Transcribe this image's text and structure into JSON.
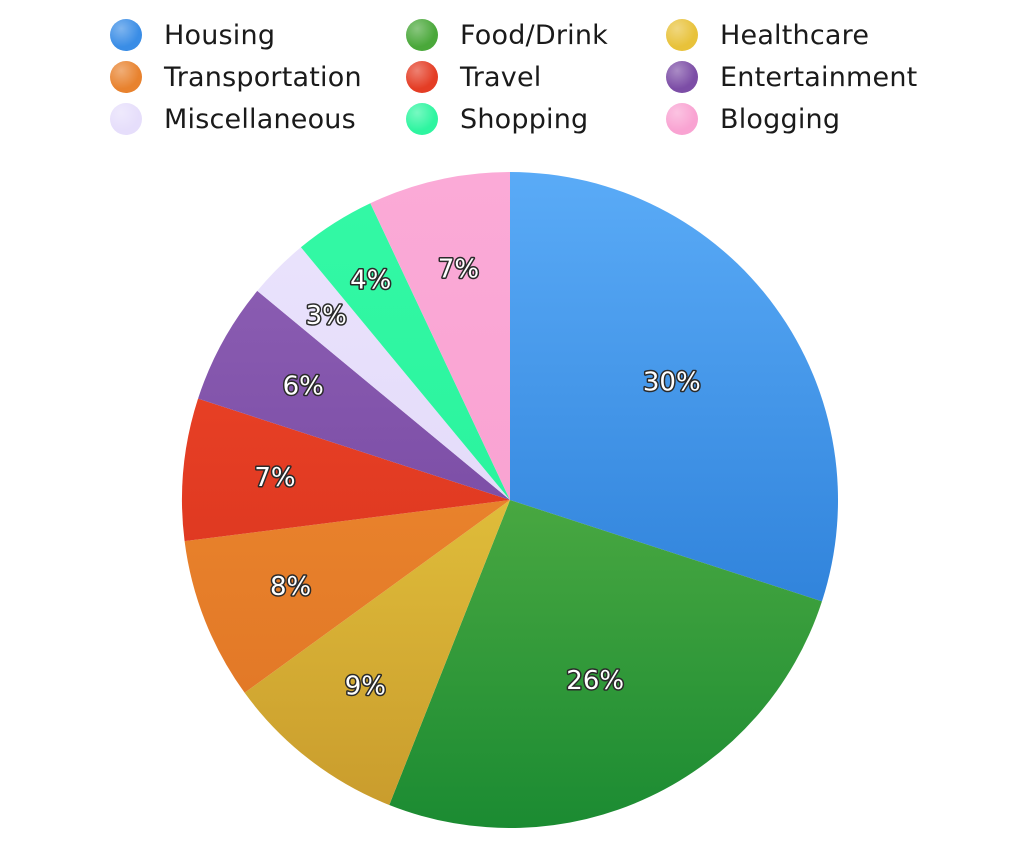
{
  "chart_data": {
    "type": "pie",
    "title": "",
    "slices": [
      {
        "name": "Housing",
        "value": 30,
        "label": "30%",
        "color": "#3a8de6",
        "gradient": [
          "#5aabf7",
          "#1b6fcd"
        ]
      },
      {
        "name": "Food/Drink",
        "value": 26,
        "label": "26%",
        "color": "#4aa83a",
        "gradient": [
          "#76c450",
          "#1b8b32"
        ]
      },
      {
        "name": "Healthcare",
        "value": 9,
        "label": "9%",
        "color": "#e8c23a",
        "gradient": [
          "#f6df48",
          "#c89a2c"
        ]
      },
      {
        "name": "Transportation",
        "value": 8,
        "label": "8%",
        "color": "#e8822e",
        "gradient": [
          "#f39233",
          "#de7224"
        ]
      },
      {
        "name": "Travel",
        "value": 7,
        "label": "7%",
        "color": "#e43d25",
        "gradient": [
          "#f24a29",
          "#d12c1c"
        ]
      },
      {
        "name": "Entertainment",
        "value": 6,
        "label": "6%",
        "color": "#7c4da6",
        "gradient": [
          "#9163b7",
          "#693b97"
        ]
      },
      {
        "name": "Miscellaneous",
        "value": 3,
        "label": "3%",
        "color": "#e6defb",
        "gradient": [
          "#ebe4fd",
          "#ddd3f6"
        ]
      },
      {
        "name": "Shopping",
        "value": 4,
        "label": "4%",
        "color": "#2ef5a0",
        "gradient": [
          "#34f9a6",
          "#22ee96"
        ]
      },
      {
        "name": "Blogging",
        "value": 7,
        "label": "7%",
        "color": "#f9a3d2",
        "gradient": [
          "#fbaad7",
          "#f79ccd"
        ]
      }
    ],
    "legend": {
      "placement": "top",
      "items": [
        {
          "name": "Housing",
          "color": "#3a8de6"
        },
        {
          "name": "Food/Drink",
          "color": "#4aa83a"
        },
        {
          "name": "Healthcare",
          "color": "#e8c23a"
        },
        {
          "name": "Transportation",
          "color": "#e8822e"
        },
        {
          "name": "Travel",
          "color": "#e43d25"
        },
        {
          "name": "Entertainment",
          "color": "#7c4da6"
        },
        {
          "name": "Miscellaneous",
          "color": "#e6defb"
        },
        {
          "name": "Shopping",
          "color": "#2ef5a0"
        },
        {
          "name": "Blogging",
          "color": "#f9a3d2"
        }
      ]
    }
  }
}
